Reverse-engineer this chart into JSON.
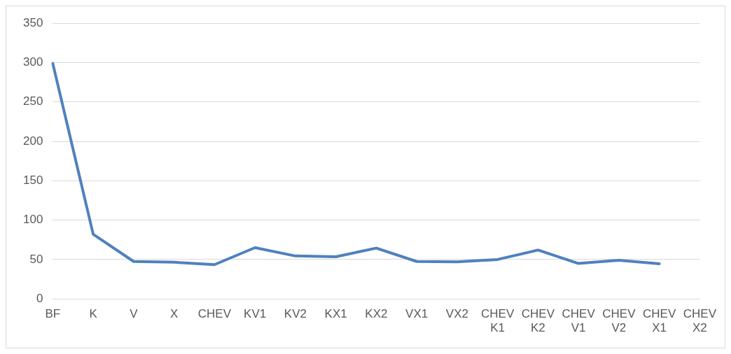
{
  "chart_data": {
    "type": "line",
    "categories": [
      "BF",
      "K",
      "V",
      "X",
      "CHEV",
      "KV1",
      "KV2",
      "KX1",
      "KX2",
      "VX1",
      "VX2",
      "CHEV K1",
      "CHEV K2",
      "CHEV V1",
      "CHEV V2",
      "CHEV X1",
      "CHEV X2"
    ],
    "series": [
      {
        "color": "#4f81bd",
        "values": [
          299,
          82,
          47.5,
          46.5,
          43.5,
          65,
          54.5,
          53.5,
          64.5,
          47.5,
          47,
          50,
          62,
          45,
          49,
          44.5,
          null
        ]
      }
    ],
    "ylim": [
      0,
      350
    ],
    "yticks": [
      0,
      50,
      100,
      150,
      200,
      250,
      300,
      350
    ],
    "grid": "y",
    "legend": false,
    "marker": "none",
    "line_style": "solid"
  }
}
